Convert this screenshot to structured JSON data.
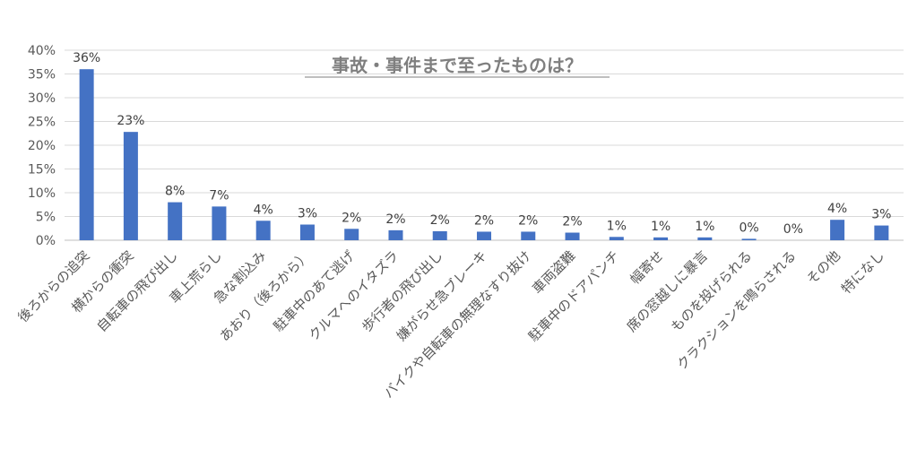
{
  "chart_data": {
    "type": "bar",
    "title": "事故・事件まで至ったものは？",
    "categories": [
      "後ろからの追突",
      "横からの衝突",
      "自転車の飛び出し",
      "車上荒らし",
      "急な割込み",
      "あおり（後ろから）",
      "駐車中のあて逃げ",
      "クルマへのイタズラ",
      "歩行者の飛び出し",
      "嫌がらせ急ブレーキ",
      "バイクや自転車の無理なすり抜け",
      "車両盗難",
      "駐車中のドアパンチ",
      "幅寄せ",
      "席の窓越しに暴言",
      "ものを投げられる",
      "クラクションを鳴らされる",
      "その他",
      "特になし"
    ],
    "values": [
      36,
      22.8,
      8,
      7.1,
      4.1,
      3.3,
      2.4,
      2.1,
      1.9,
      1.8,
      1.8,
      1.6,
      0.7,
      0.6,
      0.6,
      0.3,
      0,
      4.3,
      3.1
    ],
    "data_labels": [
      "36%",
      "23%",
      "8%",
      "7%",
      "4%",
      "3%",
      "2%",
      "2%",
      "2%",
      "2%",
      "2%",
      "2%",
      "1%",
      "1%",
      "1%",
      "0%",
      "0%",
      "4%",
      "3%"
    ],
    "y_ticks": [
      "0%",
      "5%",
      "10%",
      "15%",
      "20%",
      "25%",
      "30%",
      "35%",
      "40%"
    ],
    "ylim": [
      0,
      40
    ],
    "xlabel": "",
    "ylabel": "",
    "grid": true,
    "legend": false,
    "bar_color": "#4472C4",
    "grid_color": "#D9D9D9"
  }
}
